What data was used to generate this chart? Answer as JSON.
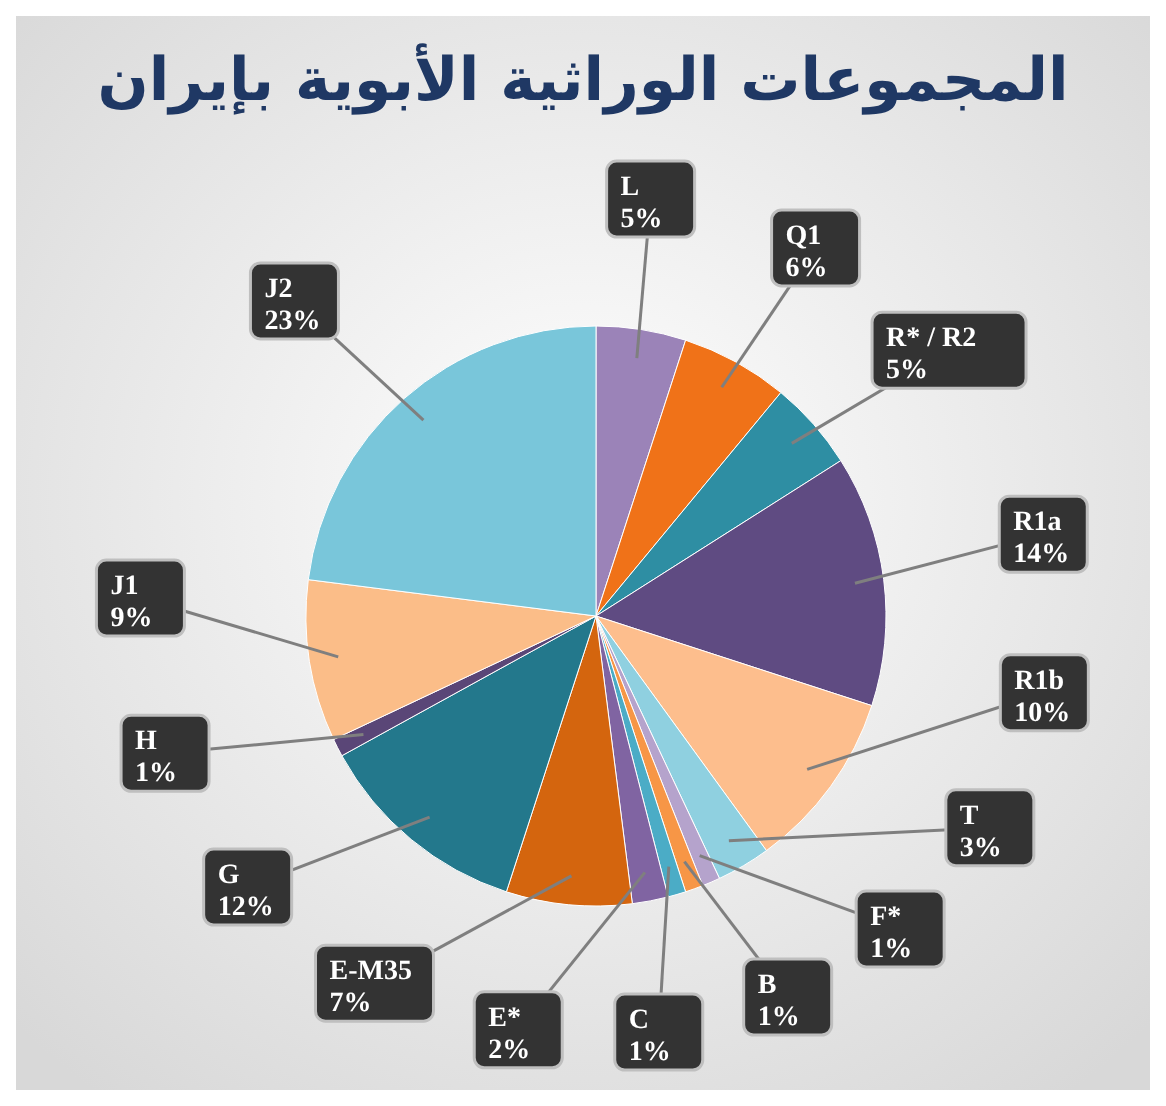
{
  "chart_data": {
    "type": "pie",
    "title": "المجموعات الوراثية الأبوية بإيران",
    "categories": [
      "L",
      "Q1",
      "R* / R2",
      "R1a",
      "R1b",
      "T",
      "F*",
      "B",
      "C",
      "E*",
      "E-M35",
      "G",
      "H",
      "J1",
      "J2"
    ],
    "values": [
      5,
      6,
      5,
      14,
      10,
      3,
      1,
      1,
      1,
      2,
      7,
      12,
      1,
      9,
      23
    ],
    "colors": [
      "#9b83b8",
      "#f07218",
      "#2e8ea3",
      "#5f4b82",
      "#fdbe8d",
      "#8fd0e0",
      "#b5a3cc",
      "#f79646",
      "#4bacc6",
      "#8064a2",
      "#d4650e",
      "#23788c",
      "#5a4677",
      "#fbbd88",
      "#79c6da"
    ],
    "value_labels": [
      "5%",
      "6%",
      "5%",
      "14%",
      "10%",
      "3%",
      "1%",
      "1%",
      "1%",
      "2%",
      "7%",
      "12%",
      "1%",
      "9%",
      "23%"
    ]
  }
}
